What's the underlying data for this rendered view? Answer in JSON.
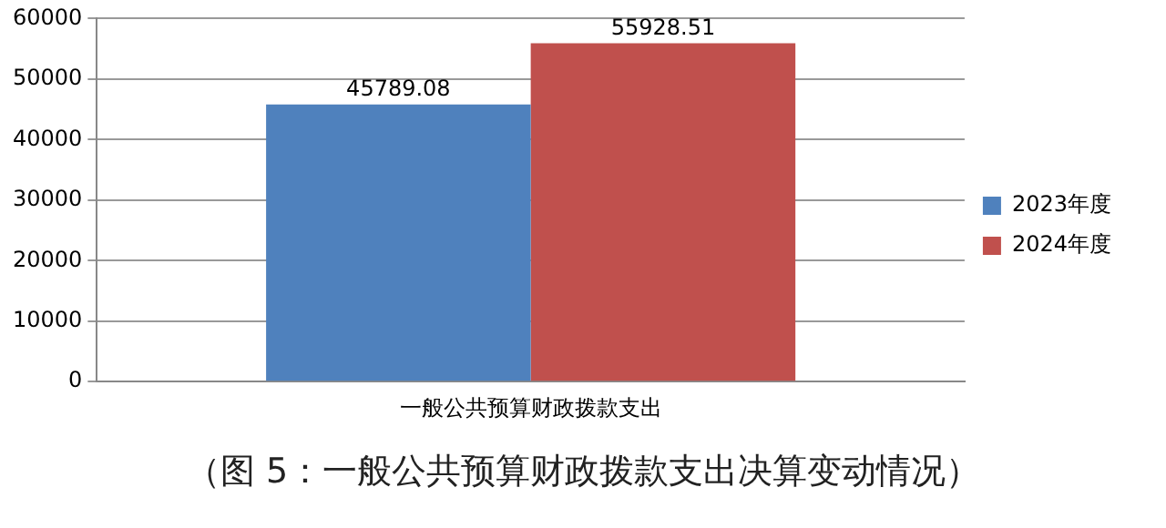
{
  "chart_data": {
    "type": "bar",
    "categories": [
      "一般公共预算财政拨款支出"
    ],
    "series": [
      {
        "name": "2023年度",
        "color": "#4f81bd",
        "values": [
          45789.08
        ]
      },
      {
        "name": "2024年度",
        "color": "#c0504d",
        "values": [
          55928.51
        ]
      }
    ],
    "ylim": [
      0,
      60000
    ],
    "yticks": [
      0,
      10000,
      20000,
      30000,
      40000,
      50000,
      60000
    ],
    "grid": "y",
    "legend": "right",
    "data_labels": true,
    "annotations": [
      "（图 5：一般公共预算财政拨款支出决算变动情况）"
    ]
  }
}
